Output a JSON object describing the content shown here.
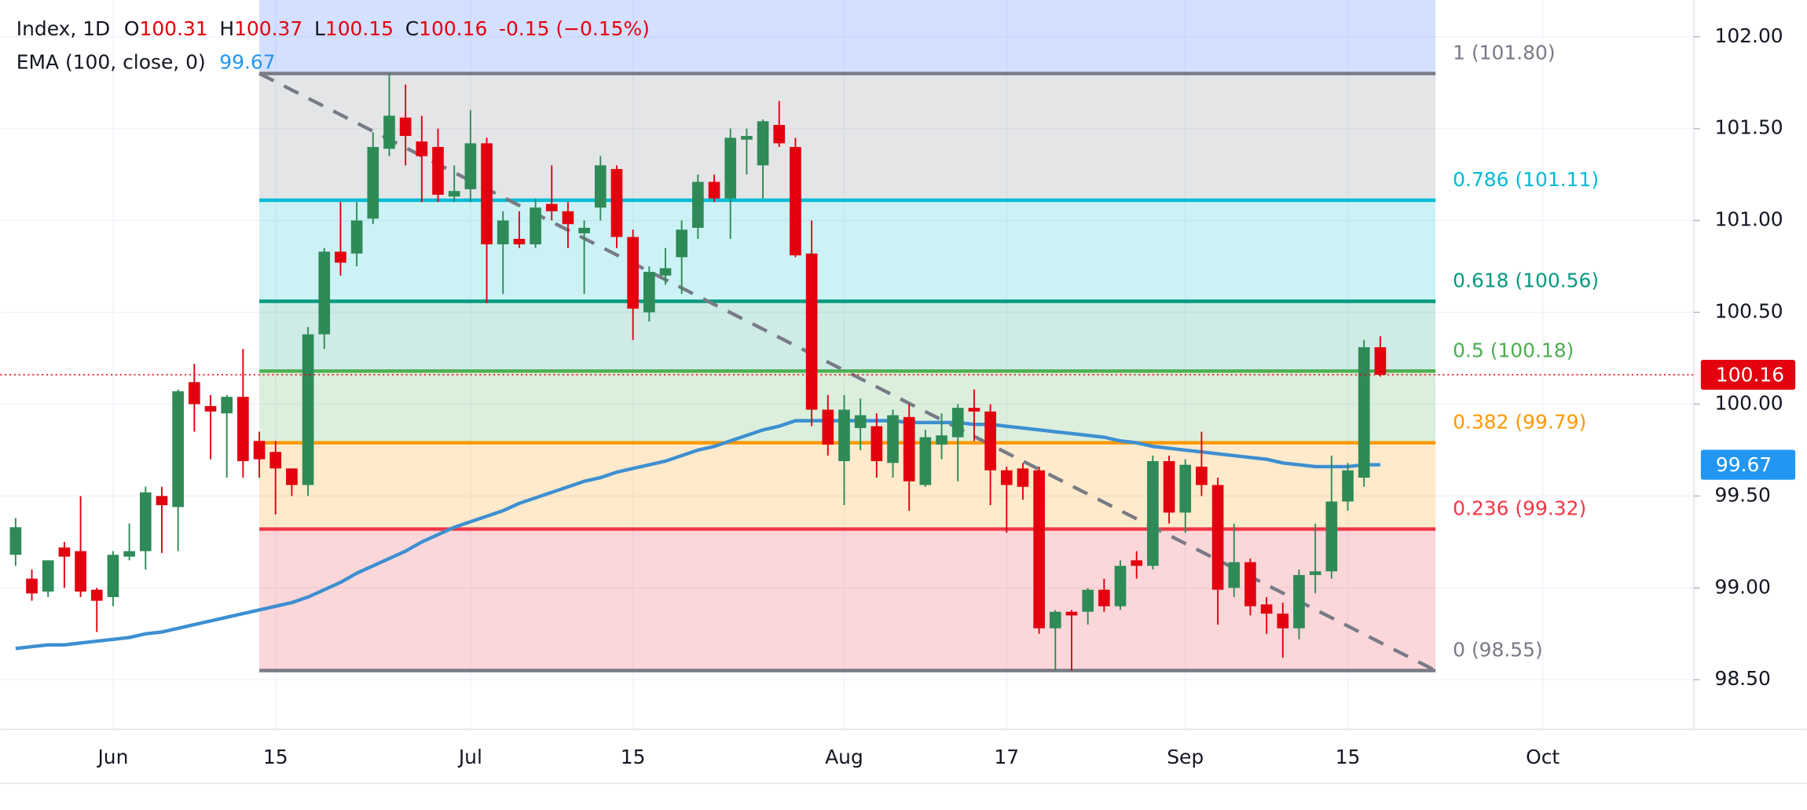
{
  "chart_data": {
    "type": "candlestick",
    "title": "Index, 1D",
    "ohlc_labels": [
      "O",
      "H",
      "L",
      "C"
    ],
    "change": "-0.15 (−0.15%)",
    "categories": [
      null,
      null,
      null,
      null,
      null,
      null,
      "Jun",
      null,
      null,
      null,
      null,
      null,
      null,
      null,
      null,
      null,
      "15",
      null,
      null,
      null,
      null,
      null,
      null,
      null,
      null,
      null,
      null,
      null,
      "Jul",
      null,
      null,
      null,
      null,
      null,
      null,
      null,
      null,
      null,
      "15",
      null,
      null,
      null,
      null,
      null,
      null,
      null,
      null,
      null,
      null,
      null,
      null,
      "Aug",
      null,
      null,
      null,
      null,
      null,
      null,
      null,
      null,
      null,
      "17",
      null,
      null,
      null,
      null,
      null,
      null,
      null,
      null,
      null,
      null,
      "Sep",
      null,
      null,
      null,
      null,
      null,
      null,
      null,
      null,
      null,
      "15",
      null,
      null,
      null,
      null,
      null,
      null,
      null,
      null,
      null,
      null,
      null,
      "Oct"
    ],
    "open": [
      99.18,
      99.05,
      98.98,
      99.22,
      99.2,
      98.99,
      98.95,
      99.17,
      99.2,
      99.5,
      99.44,
      100.12,
      99.99,
      99.95,
      100.04,
      99.8,
      99.74,
      99.65,
      99.56,
      100.38,
      100.83,
      100.82,
      101.01,
      101.39,
      101.56,
      101.43,
      101.4,
      101.13,
      101.17,
      101.42,
      100.87,
      100.9,
      100.87,
      101.09,
      101.05,
      100.93,
      101.07,
      101.28,
      100.91,
      100.5,
      100.7,
      100.8,
      100.96,
      101.21,
      101.12,
      101.44,
      101.3,
      101.52,
      101.4,
      100.82,
      99.97,
      99.69,
      99.87,
      99.88,
      99.68,
      99.93,
      99.56,
      99.78,
      99.82,
      99.98,
      99.96,
      99.64,
      99.65,
      99.64,
      98.78,
      98.87,
      98.87,
      98.99,
      98.9,
      99.15,
      99.12,
      99.69,
      99.41,
      99.66,
      99.56,
      99.0,
      99.14,
      98.91,
      98.86,
      98.78,
      99.07,
      99.09,
      99.47,
      99.6,
      100.31,
      null,
      null,
      null,
      null,
      null,
      null,
      null,
      null,
      null,
      null
    ],
    "high": [
      99.38,
      99.1,
      99.15,
      99.25,
      99.5,
      99.0,
      99.2,
      99.35,
      99.55,
      99.55,
      100.08,
      100.22,
      100.05,
      100.05,
      100.3,
      99.85,
      99.8,
      99.65,
      100.42,
      100.85,
      101.1,
      101.1,
      101.48,
      101.8,
      101.74,
      101.57,
      101.5,
      101.3,
      101.6,
      101.45,
      101.05,
      101.05,
      101.12,
      101.3,
      101.1,
      101.0,
      101.35,
      101.3,
      100.95,
      100.75,
      100.85,
      101.0,
      101.25,
      101.25,
      101.5,
      101.5,
      101.55,
      101.65,
      101.45,
      101.0,
      100.05,
      100.05,
      100.03,
      99.95,
      99.97,
      100.0,
      99.86,
      99.95,
      100.0,
      100.08,
      100.0,
      99.66,
      99.68,
      99.66,
      98.88,
      98.88,
      99.0,
      99.05,
      99.15,
      99.2,
      99.72,
      99.72,
      99.7,
      99.85,
      99.6,
      99.35,
      99.16,
      98.95,
      98.92,
      99.1,
      99.35,
      99.72,
      99.68,
      100.35,
      100.37,
      null,
      null,
      null,
      null,
      null,
      null,
      null,
      null,
      null,
      null
    ],
    "low": [
      99.12,
      98.93,
      98.95,
      99.0,
      98.95,
      98.76,
      98.9,
      99.15,
      99.1,
      99.19,
      99.2,
      99.85,
      99.7,
      99.6,
      99.6,
      99.6,
      99.4,
      99.5,
      99.5,
      100.3,
      100.7,
      100.75,
      100.98,
      101.35,
      101.3,
      101.1,
      101.1,
      101.1,
      101.1,
      100.55,
      100.6,
      100.85,
      100.85,
      101.0,
      100.85,
      100.6,
      101.0,
      100.85,
      100.35,
      100.45,
      100.65,
      100.6,
      100.9,
      101.1,
      100.9,
      101.25,
      101.12,
      101.4,
      100.8,
      99.88,
      99.72,
      99.45,
      99.75,
      99.6,
      99.6,
      99.42,
      99.55,
      99.7,
      99.58,
      99.8,
      99.45,
      99.3,
      99.48,
      98.75,
      98.55,
      98.55,
      98.8,
      98.87,
      98.88,
      99.05,
      99.1,
      99.35,
      99.3,
      99.5,
      98.8,
      98.95,
      98.85,
      98.75,
      98.62,
      98.72,
      98.97,
      99.05,
      99.42,
      99.55,
      100.15,
      null,
      null,
      null,
      null,
      null,
      null,
      null,
      null,
      null,
      null
    ],
    "close": [
      99.33,
      98.97,
      99.15,
      99.17,
      98.98,
      98.93,
      99.18,
      99.2,
      99.52,
      99.45,
      100.07,
      100.0,
      99.96,
      100.04,
      99.69,
      99.7,
      99.65,
      99.56,
      100.38,
      100.83,
      100.77,
      101.0,
      101.4,
      101.57,
      101.46,
      101.35,
      101.14,
      101.16,
      101.42,
      100.87,
      101.0,
      100.87,
      101.07,
      101.05,
      100.98,
      100.96,
      101.3,
      100.91,
      100.52,
      100.72,
      100.74,
      100.95,
      101.21,
      101.12,
      101.45,
      101.46,
      101.54,
      101.42,
      100.81,
      99.97,
      99.78,
      99.97,
      99.94,
      99.69,
      99.94,
      99.58,
      99.82,
      99.83,
      99.98,
      99.96,
      99.64,
      99.56,
      99.55,
      98.78,
      98.87,
      98.85,
      98.99,
      98.9,
      99.12,
      99.12,
      99.69,
      99.41,
      99.67,
      99.56,
      98.99,
      99.14,
      98.9,
      98.86,
      98.78,
      99.07,
      99.09,
      99.47,
      99.64,
      100.31,
      100.16,
      null,
      null,
      null,
      null,
      null,
      null,
      null,
      null,
      null,
      null
    ],
    "up_color": "#2e8b57",
    "down_color": "#e3000f",
    "series": [
      {
        "name": "EMA (100, close, 0)",
        "color": "#3d8fd1",
        "values": [
          98.67,
          98.68,
          98.69,
          98.69,
          98.7,
          98.71,
          98.72,
          98.73,
          98.75,
          98.76,
          98.78,
          98.8,
          98.82,
          98.84,
          98.86,
          98.88,
          98.9,
          98.92,
          98.95,
          98.99,
          99.03,
          99.08,
          99.12,
          99.16,
          99.2,
          99.25,
          99.29,
          99.33,
          99.36,
          99.39,
          99.42,
          99.46,
          99.49,
          99.52,
          99.55,
          99.58,
          99.6,
          99.63,
          99.65,
          99.67,
          99.69,
          99.72,
          99.75,
          99.77,
          99.8,
          99.83,
          99.86,
          99.88,
          99.91,
          99.91,
          99.91,
          99.91,
          99.91,
          99.91,
          99.91,
          99.9,
          99.9,
          99.9,
          99.9,
          99.89,
          99.89,
          99.88,
          99.87,
          99.86,
          99.85,
          99.84,
          99.83,
          99.82,
          99.8,
          99.79,
          99.77,
          99.76,
          99.75,
          99.74,
          99.73,
          99.72,
          99.71,
          99.7,
          99.68,
          99.67,
          99.66,
          99.66,
          99.66,
          99.67,
          99.67,
          null,
          null,
          null,
          null,
          null,
          null,
          null,
          null,
          null,
          null
        ]
      }
    ],
    "ylim": [
      98.23,
      102.2
    ],
    "yticks": [
      {
        "value": 98.5,
        "label": "98.50"
      },
      {
        "value": 99,
        "label": "99.00"
      },
      {
        "value": 99.5,
        "label": "99.50"
      },
      {
        "value": 100,
        "label": "100.00"
      },
      {
        "value": 100.5,
        "label": "100.50"
      },
      {
        "value": 101,
        "label": "101.00"
      },
      {
        "value": 101.5,
        "label": "101.50"
      },
      {
        "value": 102,
        "label": "102.00"
      }
    ],
    "grid": true,
    "fib_levels": [
      {
        "label": "1 (101.80)",
        "value": 101.8,
        "color": "#787b86"
      },
      {
        "label": "0.786 (101.11)",
        "value": 101.11,
        "color": "#00bcd4"
      },
      {
        "label": "0.618 (100.56)",
        "value": 100.56,
        "color": "#089981"
      },
      {
        "label": "0.5 (100.18)",
        "value": 100.18,
        "color": "#4caf50"
      },
      {
        "label": "0.382 (99.79)",
        "value": 99.79,
        "color": "#ff9800"
      },
      {
        "label": "0.236 (99.32)",
        "value": 99.32,
        "color": "#f23645"
      },
      {
        "label": "0 (98.55)",
        "value": 98.55,
        "color": "#787b86"
      }
    ]
  }
}
